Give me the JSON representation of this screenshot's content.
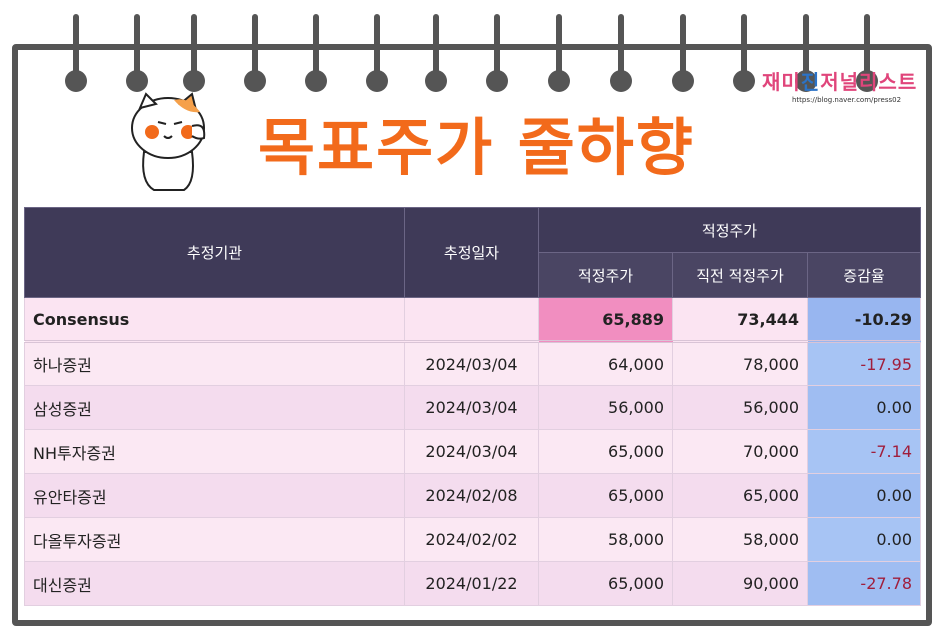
{
  "logo": {
    "part1": "재미",
    "part2": "진",
    "part3": "저널리스트",
    "url": "https://blog.naver.com/press02"
  },
  "title": "목표주가 줄하향",
  "table": {
    "header": {
      "org": "추정기관",
      "date": "추정일자",
      "group": "적정주가",
      "target": "적정주가",
      "prev": "직전 적정주가",
      "change": "증감율"
    },
    "consensus": {
      "name": "Consensus",
      "date": "",
      "target": "65,889",
      "prev": "73,444",
      "change": "-10.29"
    },
    "rows": [
      {
        "name": "하나증권",
        "date": "2024/03/04",
        "target": "64,000",
        "prev": "78,000",
        "change": "-17.95"
      },
      {
        "name": "삼성증권",
        "date": "2024/03/04",
        "target": "56,000",
        "prev": "56,000",
        "change": "0.00"
      },
      {
        "name": "NH투자증권",
        "date": "2024/03/04",
        "target": "65,000",
        "prev": "70,000",
        "change": "-7.14"
      },
      {
        "name": "유안타증권",
        "date": "2024/02/08",
        "target": "65,000",
        "prev": "65,000",
        "change": "0.00"
      },
      {
        "name": "다올투자증권",
        "date": "2024/02/02",
        "target": "58,000",
        "prev": "58,000",
        "change": "0.00"
      },
      {
        "name": "대신증권",
        "date": "2024/01/22",
        "target": "65,000",
        "prev": "90,000",
        "change": "-27.78"
      }
    ]
  },
  "colors": {
    "title": "#f26a1b",
    "header_bg": "#3f3a58",
    "highlight": "#f18ec0",
    "change_bg": "#a7c4f4",
    "negative": "#a01e3c"
  }
}
